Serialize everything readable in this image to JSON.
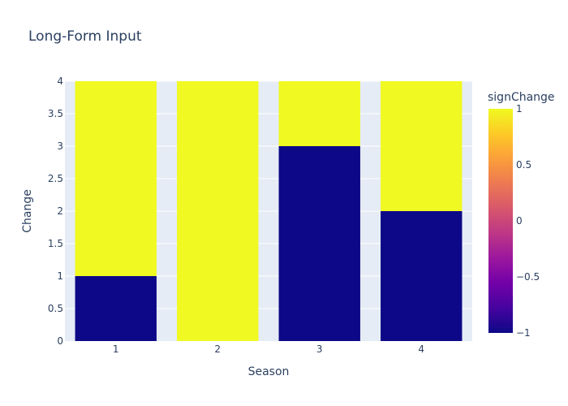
{
  "chart_data": {
    "type": "bar",
    "stacked": true,
    "title": "Long-Form Input",
    "xlabel": "Season",
    "ylabel": "Change",
    "categories": [
      "1",
      "2",
      "3",
      "4"
    ],
    "ylim": [
      0,
      4
    ],
    "y_ticks": [
      "0",
      "0.5",
      "1",
      "1.5",
      "2",
      "2.5",
      "3",
      "3.5",
      "4"
    ],
    "series": [
      {
        "values": [
          1,
          0,
          3,
          2
        ],
        "color_value": -1,
        "color": "#0d0887"
      },
      {
        "values": [
          3,
          4,
          1,
          2
        ],
        "color_value": 1,
        "color": "#f0f921"
      }
    ],
    "colorbar": {
      "title": "signChange",
      "range": [
        -1,
        1
      ],
      "ticks": [
        "1",
        "0.5",
        "0",
        "−0.5",
        "−1"
      ],
      "tick_values": [
        1,
        0.5,
        0,
        -0.5,
        -1
      ],
      "colorscale": [
        "#0d0887",
        "#46039f",
        "#7201a8",
        "#9c179e",
        "#bd3786",
        "#d8576b",
        "#ed7953",
        "#fb9f3a",
        "#fdca26",
        "#f0f921"
      ]
    },
    "grid": true,
    "plot_bgcolor": "#e5ecf6",
    "gridcolor": "#ffffff"
  }
}
